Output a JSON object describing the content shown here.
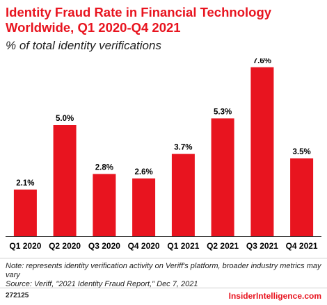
{
  "header": {
    "title": "Identity Fraud Rate in Financial Technology Worldwide, Q1 2020-Q4 2021",
    "subtitle": "% of total identity verifications"
  },
  "chart_data": {
    "type": "bar",
    "categories": [
      "Q1 2020",
      "Q2 2020",
      "Q3 2020",
      "Q4 2020",
      "Q1 2021",
      "Q2 2021",
      "Q3 2021",
      "Q4 2021"
    ],
    "values": [
      2.1,
      5.0,
      2.8,
      2.6,
      3.7,
      5.3,
      7.6,
      3.5
    ],
    "data_labels": [
      "2.1%",
      "5.0%",
      "2.8%",
      "2.6%",
      "3.7%",
      "5.3%",
      "7.6%",
      "3.5%"
    ],
    "ylim": [
      0,
      8
    ],
    "grid": false,
    "bar_color": "#e8141f"
  },
  "footer": {
    "note_line1": "Note: represents identity verification activity on Veriff's platform, broader industry metrics may vary",
    "note_line2": "Source: Veriff, \"2021 Identity Fraud Report,\" Dec 7, 2021",
    "chart_id": "272125",
    "brand": "InsiderIntelligence.com"
  },
  "colors": {
    "accent": "#e8141f",
    "axis": "#333333"
  }
}
